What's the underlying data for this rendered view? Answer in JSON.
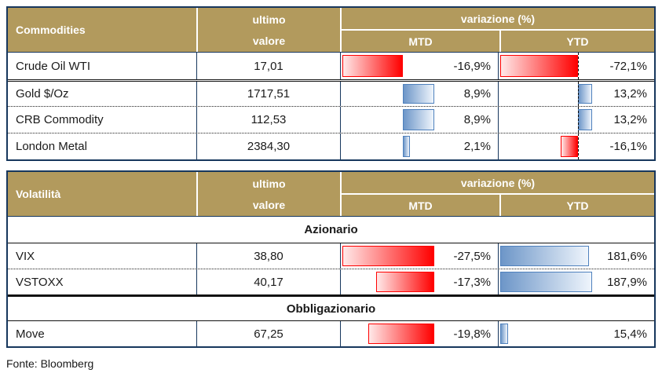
{
  "colors": {
    "header_bg": "#B29A5D",
    "header_text": "#FFFFFF",
    "table_border": "#17375D",
    "text": "#1A1A1A",
    "negative_bar": "#FF0000",
    "negative_bar_fade": "#FFE9E9",
    "positive_bar": "#6D96C8",
    "positive_bar_fade": "#EFF5FC",
    "positive_bar_border": "#4F81BD"
  },
  "footer": {
    "source": "Fonte: Bloomberg"
  },
  "chart_data": [
    {
      "type": "table",
      "title": "Commodities",
      "value_header": [
        "ultimo",
        "valore"
      ],
      "variation_header": "variazione (%)",
      "variation_cols": [
        "MTD",
        "YTD"
      ],
      "axis_line": {
        "mtd": false,
        "ytd": true
      },
      "sections": [
        {
          "label": "",
          "rows": [
            {
              "name": "Crude Oil WTI",
              "value": "17,01",
              "mtd": -16.9,
              "mtd_label": "-16,9%",
              "ytd": -72.1,
              "ytd_label": "-72,1%"
            },
            {
              "name": "Gold $/Oz",
              "value": "1717,51",
              "mtd": 8.9,
              "mtd_label": "8,9%",
              "ytd": 13.2,
              "ytd_label": "13,2%"
            },
            {
              "name": "CRB Commodity",
              "value": "112,53",
              "mtd": 8.9,
              "mtd_label": "8,9%",
              "ytd": 13.2,
              "ytd_label": "13,2%"
            },
            {
              "name": "London Metal",
              "value": "2384,30",
              "mtd": 2.1,
              "mtd_label": "2,1%",
              "ytd": -16.1,
              "ytd_label": "-16,1%"
            }
          ]
        }
      ]
    },
    {
      "type": "table",
      "title": "Volatilità",
      "value_header": [
        "ultimo",
        "valore"
      ],
      "variation_header": "variazione (%)",
      "variation_cols": [
        "MTD",
        "YTD"
      ],
      "axis_line": {
        "mtd": false,
        "ytd": false
      },
      "sections": [
        {
          "label": "Azionario",
          "rows": [
            {
              "name": "VIX",
              "value": "38,80",
              "mtd": -27.5,
              "mtd_label": "-27,5%",
              "ytd": 181.6,
              "ytd_label": "181,6%"
            },
            {
              "name": "VSTOXX",
              "value": "40,17",
              "mtd": -17.3,
              "mtd_label": "-17,3%",
              "ytd": 187.9,
              "ytd_label": "187,9%"
            }
          ]
        },
        {
          "label": "Obbligazionario",
          "rows": [
            {
              "name": "Move",
              "value": "67,25",
              "mtd": -19.8,
              "mtd_label": "-19,8%",
              "ytd": 15.4,
              "ytd_label": "15,4%"
            }
          ]
        }
      ]
    }
  ]
}
